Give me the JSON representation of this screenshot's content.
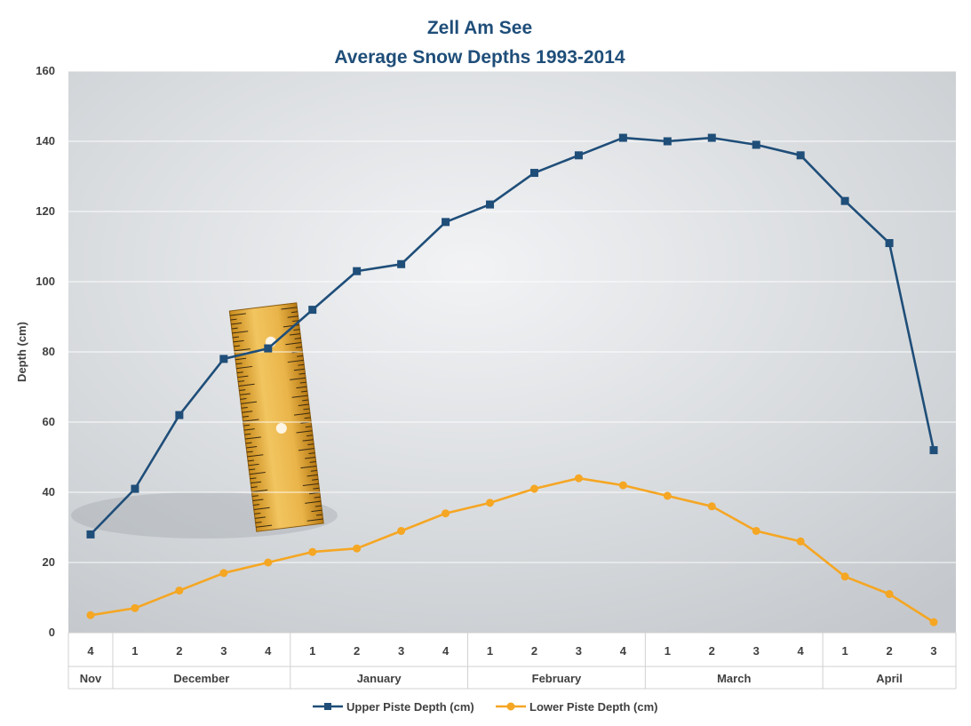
{
  "chart_data": {
    "type": "line",
    "title_line1": "Zell Am See",
    "title_line2": "Average Snow Depths 1993-2014",
    "ylabel": "Depth (cm)",
    "xlabel": "",
    "ylim": [
      0,
      160
    ],
    "yticks": [
      0,
      20,
      40,
      60,
      80,
      100,
      120,
      140,
      160
    ],
    "grid": true,
    "background": "snow photograph with a wooden ruler",
    "legend_position": "bottom",
    "categories": [
      "4",
      "1",
      "2",
      "3",
      "4",
      "1",
      "2",
      "3",
      "4",
      "1",
      "2",
      "3",
      "4",
      "1",
      "2",
      "3",
      "4",
      "1",
      "2",
      "3"
    ],
    "month_groups": [
      {
        "label": "Nov",
        "span": 1
      },
      {
        "label": "December",
        "span": 4
      },
      {
        "label": "January",
        "span": 4
      },
      {
        "label": "February",
        "span": 4
      },
      {
        "label": "March",
        "span": 4
      },
      {
        "label": "April",
        "span": 3
      }
    ],
    "series": [
      {
        "name": "Upper Piste Depth (cm)",
        "color": "#1f4e79",
        "marker": "square",
        "values": [
          28,
          41,
          62,
          78,
          81,
          92,
          103,
          105,
          117,
          122,
          131,
          136,
          141,
          140,
          141,
          139,
          136,
          123,
          111,
          52
        ]
      },
      {
        "name": "Lower Piste Depth (cm)",
        "color": "#f5a623",
        "marker": "circle",
        "values": [
          5,
          7,
          12,
          17,
          20,
          23,
          24,
          29,
          34,
          37,
          41,
          44,
          42,
          39,
          36,
          29,
          26,
          16,
          11,
          3
        ]
      }
    ]
  }
}
